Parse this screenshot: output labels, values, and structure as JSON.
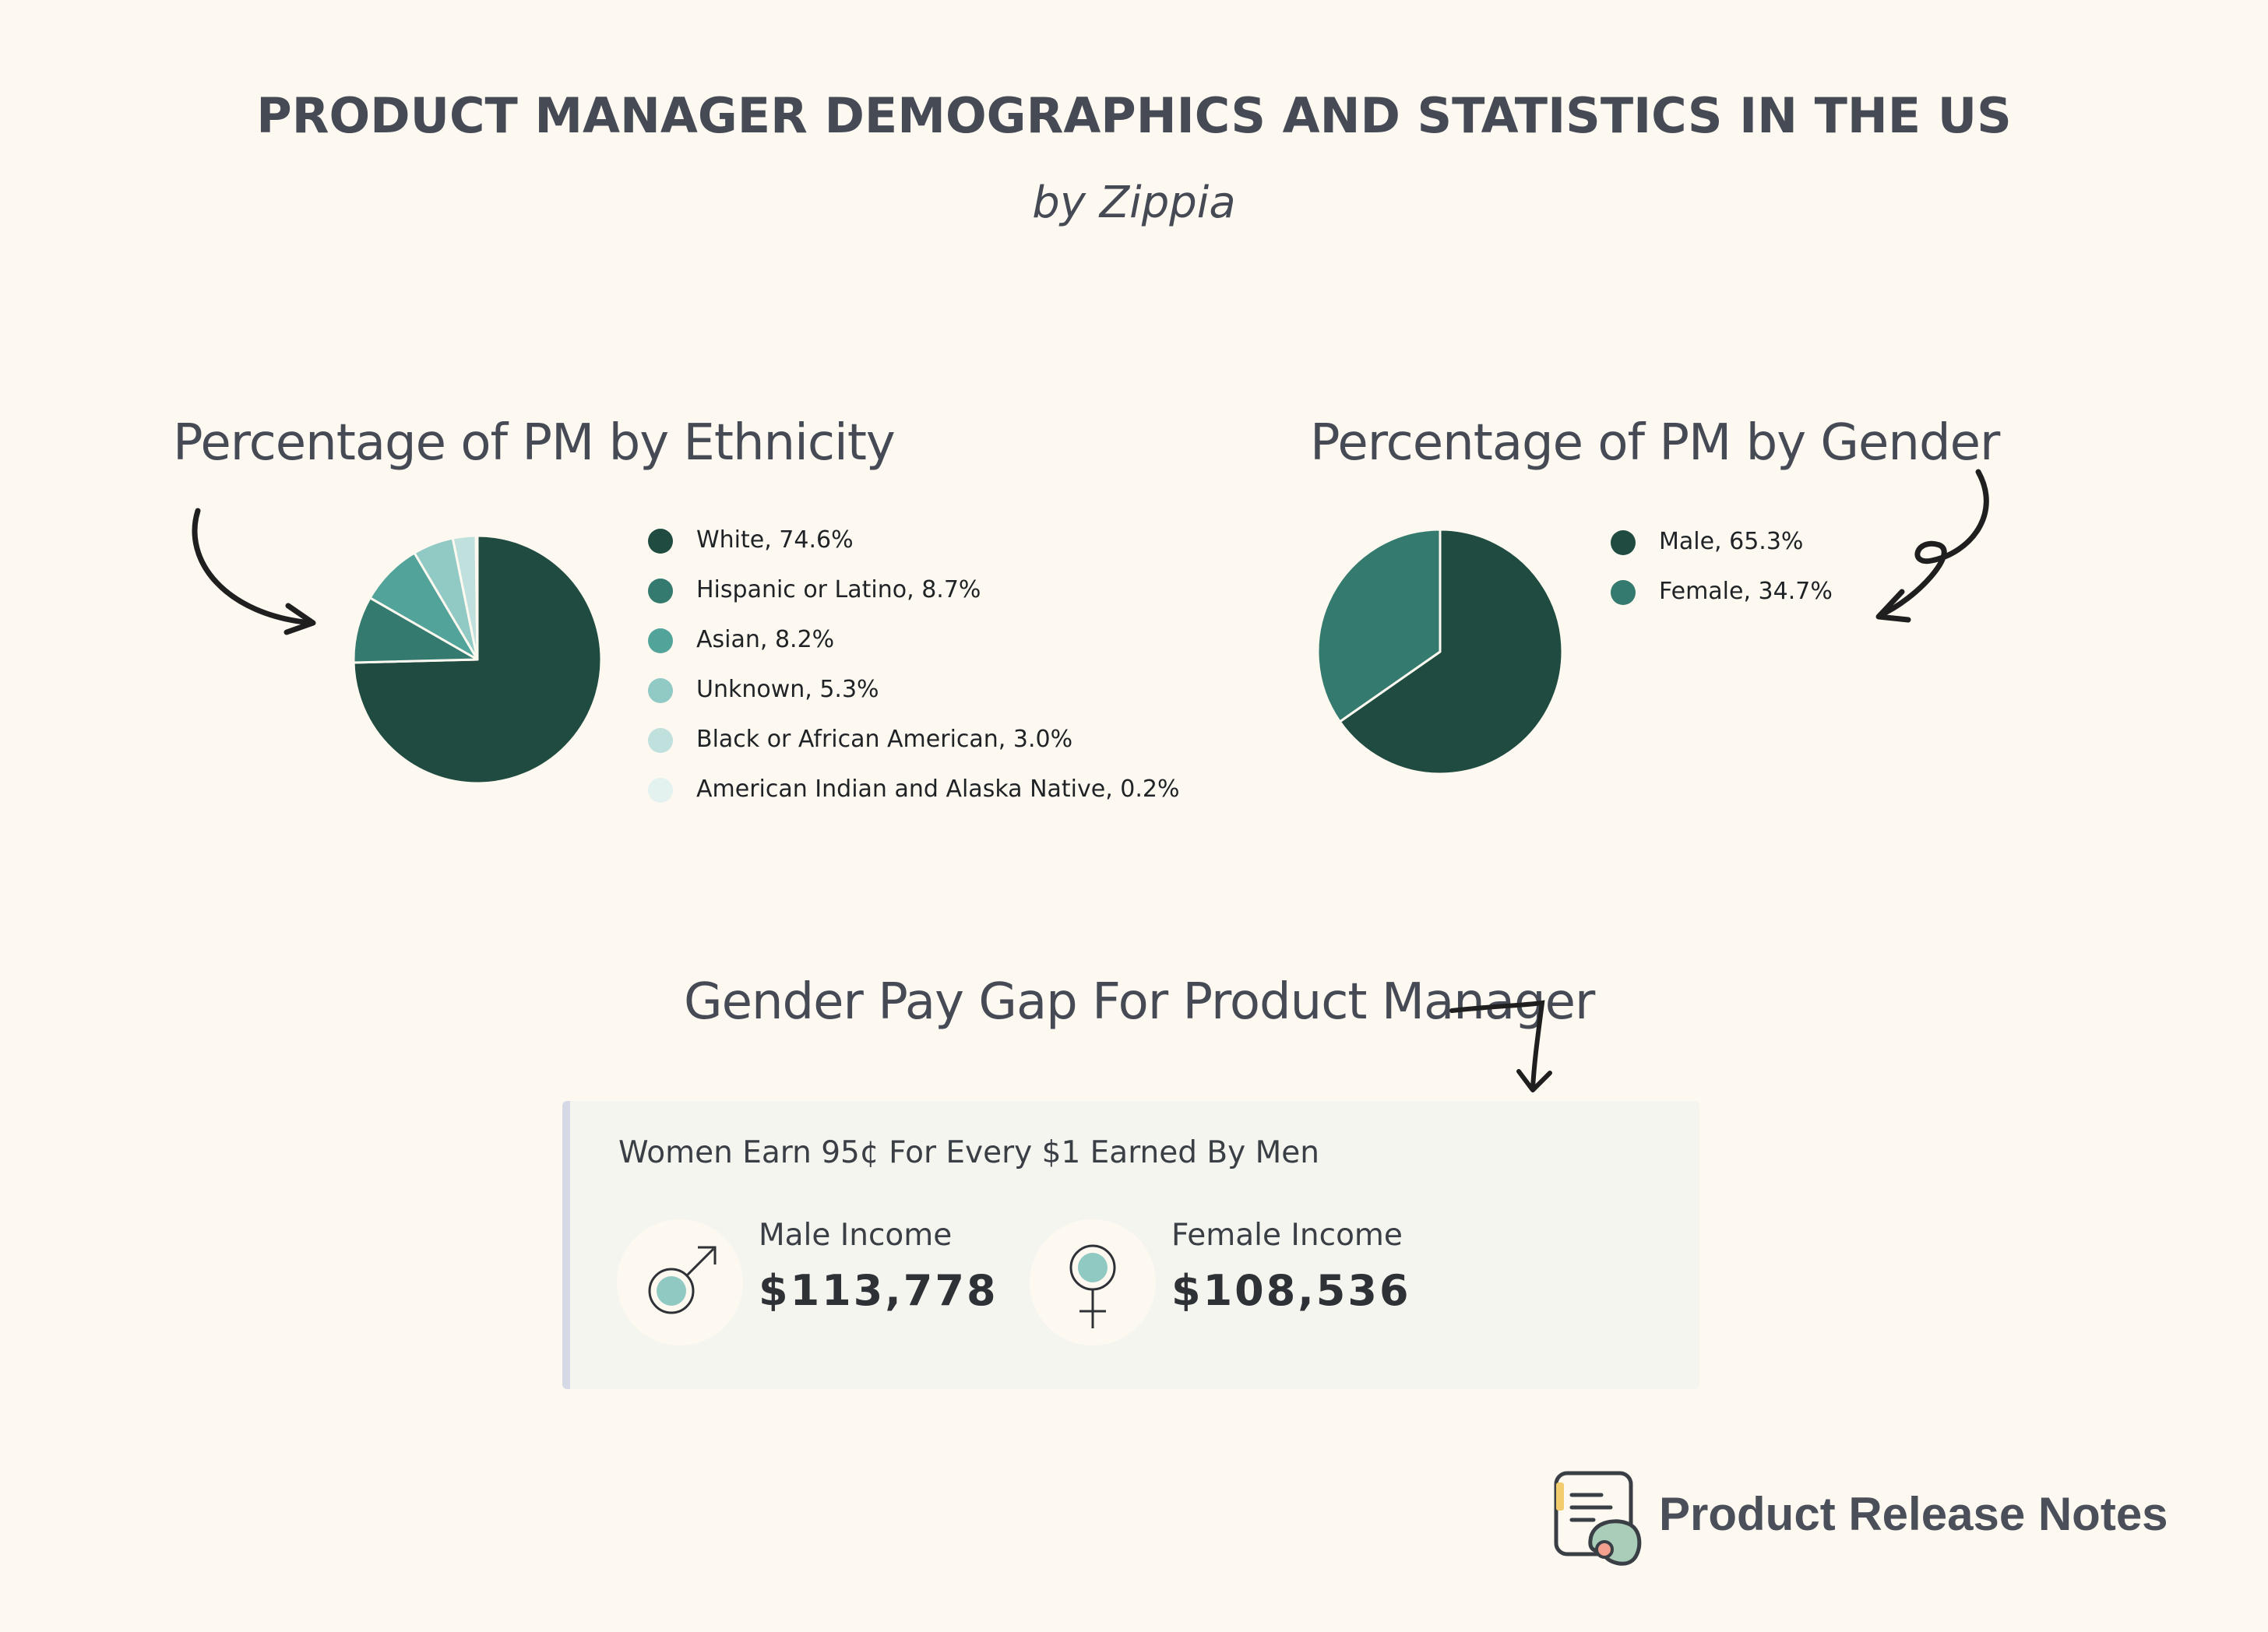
{
  "header": {
    "title": "PRODUCT MANAGER DEMOGRAPHICS AND STATISTICS IN THE US",
    "byline": "by Zippia"
  },
  "ethnicity": {
    "title": "Percentage of PM by Ethnicity",
    "legend": [
      "White, 74.6%",
      "Hispanic or Latino, 8.7%",
      "Asian, 8.2%",
      "Unknown, 5.3%",
      "Black or African American, 3.0%",
      "American Indian and Alaska Native, 0.2%"
    ]
  },
  "gender": {
    "title": "Percentage of PM by Gender",
    "legend": [
      "Male, 65.3%",
      "Female, 34.7%"
    ]
  },
  "pay_gap": {
    "title": "Gender Pay Gap For Product Manager",
    "headline": "Women Earn 95¢ For Every $1 Earned By Men",
    "male": {
      "label": "Male Income",
      "value": "$113,778",
      "icon": "male-symbol-icon"
    },
    "female": {
      "label": "Female Income",
      "value": "$108,536",
      "icon": "female-symbol-icon"
    }
  },
  "brand": {
    "name": "Product Release Notes",
    "icon": "release-notes-logo-icon"
  },
  "colors": {
    "background": "#fdf9f1",
    "text": "#454a55",
    "card": "#f4f5ef"
  },
  "chart_data": [
    {
      "type": "pie",
      "title": "Percentage of PM by Ethnicity",
      "categories": [
        "White",
        "Hispanic or Latino",
        "Asian",
        "Unknown",
        "Black or African American",
        "American Indian and Alaska Native"
      ],
      "values": [
        74.6,
        8.7,
        8.2,
        5.3,
        3.0,
        0.2
      ],
      "colors": [
        "#1f4b41",
        "#347a6e",
        "#52a39a",
        "#91cac4",
        "#bfe0dd",
        "#e3f1ef"
      ],
      "legend": "right"
    },
    {
      "type": "pie",
      "title": "Percentage of PM by Gender",
      "categories": [
        "Male",
        "Female"
      ],
      "values": [
        65.3,
        34.7
      ],
      "colors": [
        "#1f4b41",
        "#347a6e"
      ],
      "legend": "right"
    }
  ]
}
